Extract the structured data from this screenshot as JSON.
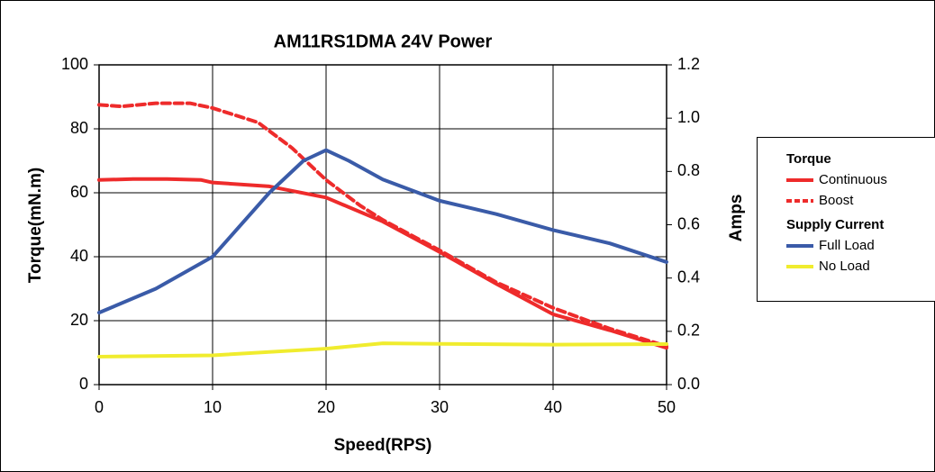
{
  "chart_data": {
    "type": "line",
    "title": "AM11RS1DMA 24V Power",
    "xlabel": "Speed(RPS)",
    "ylabel": "Torque(mN.m)",
    "y2label": "Amps",
    "xlim": [
      0,
      50
    ],
    "xticks": [
      0,
      10,
      20,
      30,
      40,
      50
    ],
    "ylim": [
      0,
      100
    ],
    "yticks": [
      0,
      20,
      40,
      60,
      80,
      100
    ],
    "y2lim": [
      0,
      1.2
    ],
    "y2ticks": [
      {
        "value": 0,
        "label": "0.0"
      },
      0.2,
      0.4,
      0.6,
      0.8,
      {
        "value": 1,
        "label": "1.0"
      },
      1.2
    ],
    "grid": true,
    "legend": "right",
    "series": [
      {
        "name": "Continuous",
        "group": "Torque",
        "color": "#ee2b2b",
        "dash": false,
        "x": [
          0,
          3,
          6,
          9,
          10,
          15,
          20,
          25,
          30,
          35,
          40,
          45,
          50
        ],
        "values": [
          64,
          64.3,
          64.3,
          64,
          63.2,
          62,
          58.5,
          51,
          41.5,
          31.5,
          22,
          17,
          11.5
        ]
      },
      {
        "name": "Boost",
        "group": "Torque",
        "color": "#ee2b2b",
        "dash": true,
        "x": [
          0,
          2,
          5,
          8,
          10,
          14,
          17,
          20,
          23,
          25,
          30,
          35,
          40,
          45,
          50
        ],
        "values": [
          87.5,
          87,
          88,
          88,
          86.5,
          82,
          74,
          64,
          56,
          51.5,
          42,
          32,
          24,
          17.5,
          12
        ]
      },
      {
        "name": "Full Load",
        "group": "Supply Current",
        "color": "#3a5ba8",
        "dash": false,
        "axis": "y2",
        "x": [
          0,
          5,
          10,
          15,
          18,
          20,
          22,
          25,
          30,
          35,
          40,
          45,
          50
        ],
        "values": [
          0.27,
          0.36,
          0.48,
          0.72,
          0.84,
          0.88,
          0.84,
          0.77,
          0.69,
          0.64,
          0.58,
          0.53,
          0.46
        ]
      },
      {
        "name": "No Load",
        "group": "Supply Current",
        "color": "#f0ec2e",
        "dash": false,
        "axis": "y2",
        "x": [
          0,
          10,
          20,
          25,
          30,
          40,
          50
        ],
        "values": [
          0.105,
          0.11,
          0.135,
          0.155,
          0.153,
          0.15,
          0.152
        ]
      }
    ]
  }
}
